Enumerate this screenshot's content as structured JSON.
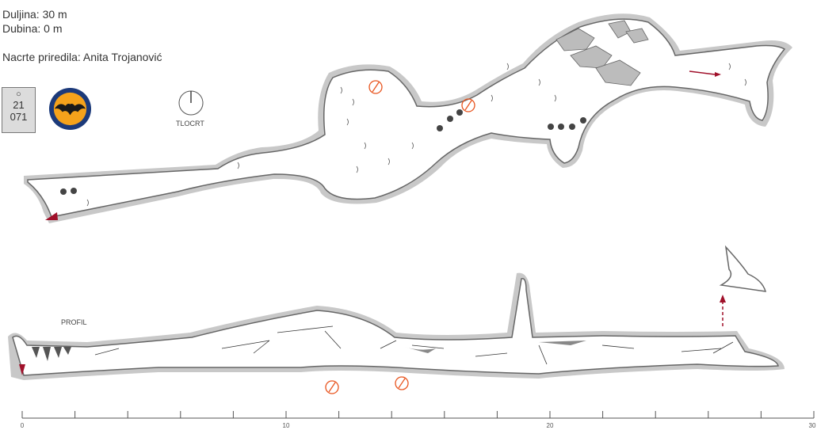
{
  "legend": {
    "length_text": "Duljina: 30 m",
    "depth_text": "Dubina: 0 m",
    "author_text": "Nacrte priredila: Anita Trojanović",
    "cave_id_top": "21",
    "cave_id_bottom": "071"
  },
  "views": {
    "plan_label": "TLOCRT",
    "profile_label": "PROFIL"
  },
  "scale_bar": {
    "unit": "m",
    "min": 0,
    "max": 30,
    "labels": [
      "0",
      "10",
      "20",
      "30"
    ]
  },
  "colors": {
    "rock": "#c8c8c8",
    "cave_outline": "#666666",
    "arrow": "#a0102a",
    "marker": "#e8541e",
    "logo_bg": "#f5a21b",
    "logo_ring": "#1c3a7a"
  }
}
